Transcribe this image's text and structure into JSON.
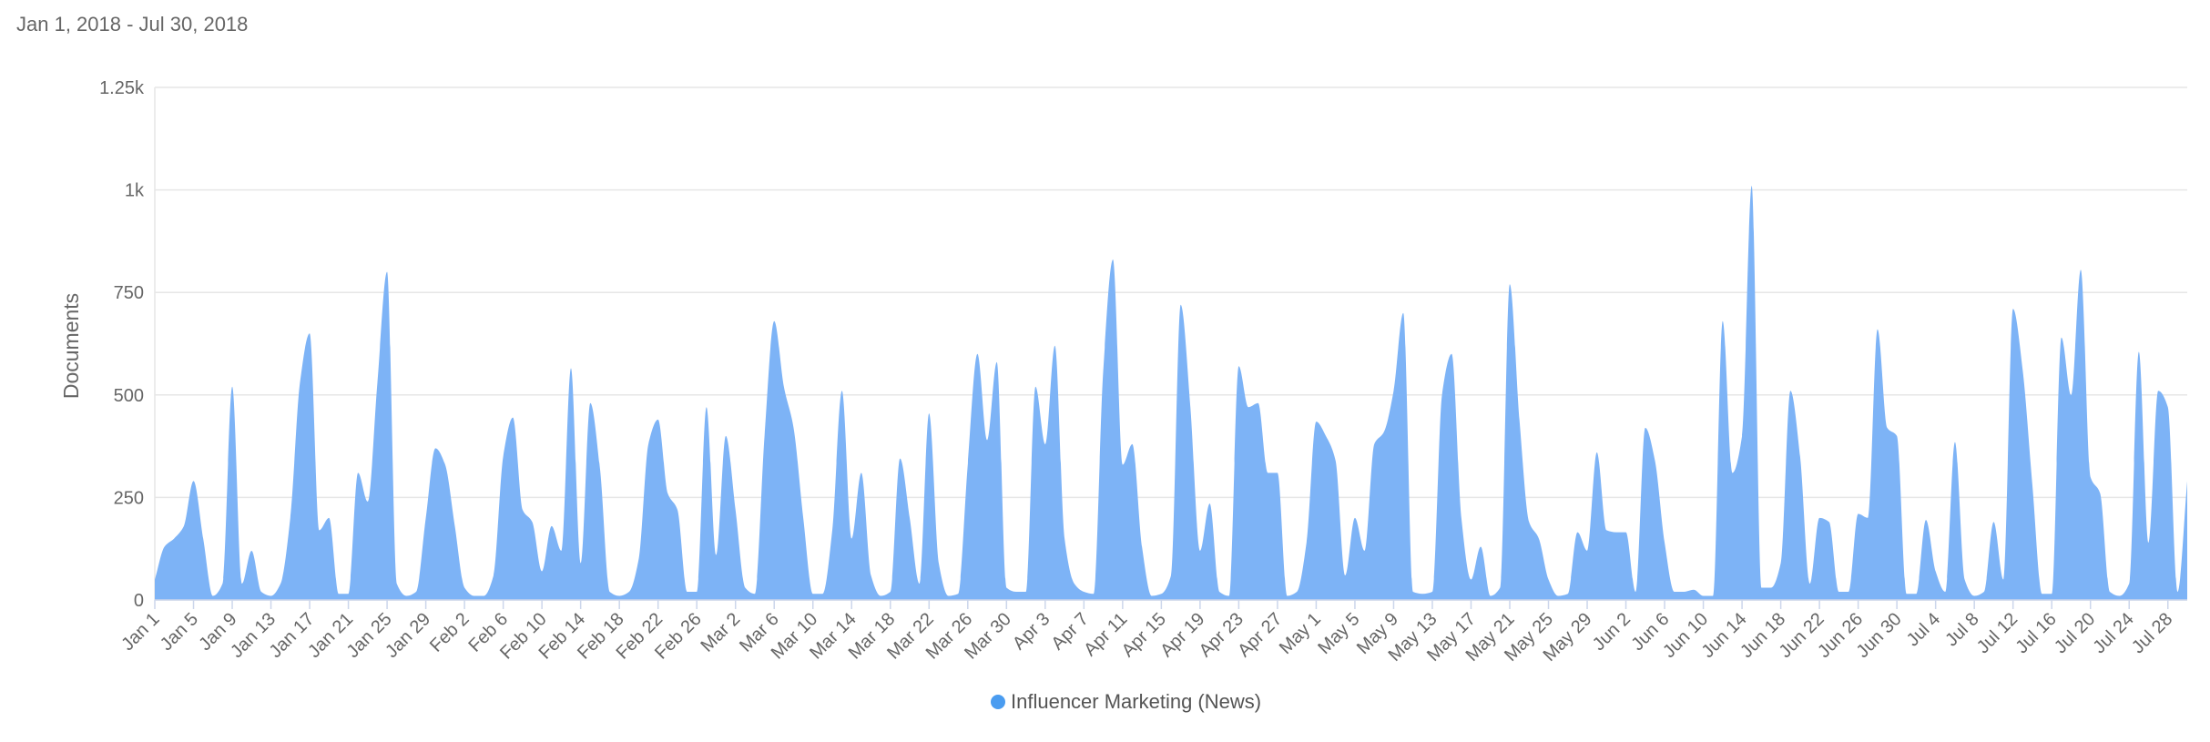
{
  "chart_data": {
    "type": "area",
    "subtitle": "Jan 1, 2018 - Jul 30, 2018",
    "y_label": "Documents",
    "ylim": [
      0,
      1250
    ],
    "yticks": [
      0,
      250,
      500,
      750,
      {
        "value": 1000,
        "label": "1k"
      },
      {
        "value": 1250,
        "label": "1.25k"
      }
    ],
    "grid": true,
    "legend": "bottom",
    "categories": [
      "Jan 1",
      null,
      null,
      null,
      "Jan 5",
      null,
      null,
      null,
      "Jan 9",
      null,
      null,
      null,
      "Jan 13",
      null,
      null,
      null,
      "Jan 17",
      null,
      null,
      null,
      "Jan 21",
      null,
      null,
      null,
      "Jan 25",
      null,
      null,
      null,
      "Jan 29",
      null,
      null,
      null,
      "Feb 2",
      null,
      null,
      null,
      "Feb 6",
      null,
      null,
      null,
      "Feb 10",
      null,
      null,
      null,
      "Feb 14",
      null,
      null,
      null,
      "Feb 18",
      null,
      null,
      null,
      "Feb 22",
      null,
      null,
      null,
      "Feb 26",
      null,
      null,
      null,
      "Mar 2",
      null,
      null,
      null,
      "Mar 6",
      null,
      null,
      null,
      "Mar 10",
      null,
      null,
      null,
      "Mar 14",
      null,
      null,
      null,
      "Mar 18",
      null,
      null,
      null,
      "Mar 22",
      null,
      null,
      null,
      "Mar 26",
      null,
      null,
      null,
      "Mar 30",
      null,
      null,
      null,
      "Apr 3",
      null,
      null,
      null,
      "Apr 7",
      null,
      null,
      null,
      "Apr 11",
      null,
      null,
      null,
      "Apr 15",
      null,
      null,
      null,
      "Apr 19",
      null,
      null,
      null,
      "Apr 23",
      null,
      null,
      null,
      "Apr 27",
      null,
      null,
      null,
      "May 1",
      null,
      null,
      null,
      "May 5",
      null,
      null,
      null,
      "May 9",
      null,
      null,
      null,
      "May 13",
      null,
      null,
      null,
      "May 17",
      null,
      null,
      null,
      "May 21",
      null,
      null,
      null,
      "May 25",
      null,
      null,
      null,
      "May 29",
      null,
      null,
      null,
      "Jun 2",
      null,
      null,
      null,
      "Jun 6",
      null,
      null,
      null,
      "Jun 10",
      null,
      null,
      null,
      "Jun 14",
      null,
      null,
      null,
      "Jun 18",
      null,
      null,
      null,
      "Jun 22",
      null,
      null,
      null,
      "Jun 26",
      null,
      null,
      null,
      "Jun 30",
      null,
      null,
      null,
      "Jul 4",
      null,
      null,
      null,
      "Jul 8",
      null,
      null,
      null,
      "Jul 12",
      null,
      null,
      null,
      "Jul 16",
      null,
      null,
      null,
      "Jul 20",
      null,
      null,
      null,
      "Jul 24",
      null,
      null,
      null,
      "Jul 28",
      null,
      null
    ],
    "series": [
      {
        "name": "Influencer Marketing (News)",
        "color": "#7db3f6",
        "marker_color": "#4a9cf0",
        "values": [
          50,
          130,
          150,
          180,
          290,
          150,
          10,
          40,
          520,
          40,
          120,
          20,
          10,
          40,
          200,
          530,
          650,
          170,
          200,
          15,
          15,
          310,
          240,
          530,
          800,
          40,
          10,
          20,
          200,
          370,
          330,
          180,
          30,
          10,
          10,
          60,
          350,
          445,
          220,
          190,
          70,
          180,
          120,
          565,
          90,
          480,
          320,
          20,
          10,
          20,
          100,
          380,
          440,
          260,
          220,
          20,
          20,
          470,
          110,
          400,
          220,
          30,
          15,
          400,
          680,
          520,
          420,
          200,
          15,
          15,
          170,
          510,
          150,
          310,
          60,
          10,
          20,
          345,
          200,
          40,
          455,
          90,
          10,
          15,
          330,
          600,
          390,
          580,
          30,
          20,
          20,
          520,
          380,
          620,
          150,
          40,
          20,
          15,
          560,
          830,
          330,
          380,
          130,
          10,
          15,
          60,
          720,
          470,
          120,
          235,
          20,
          10,
          570,
          470,
          480,
          310,
          310,
          10,
          20,
          140,
          435,
          400,
          340,
          60,
          200,
          120,
          380,
          410,
          510,
          700,
          20,
          15,
          20,
          500,
          600,
          200,
          50,
          130,
          10,
          30,
          770,
          440,
          190,
          150,
          50,
          10,
          15,
          165,
          120,
          360,
          170,
          165,
          165,
          20,
          420,
          340,
          140,
          20,
          20,
          25,
          10,
          10,
          680,
          310,
          400,
          1010,
          30,
          30,
          90,
          510,
          350,
          40,
          200,
          190,
          20,
          20,
          210,
          200,
          660,
          420,
          400,
          15,
          15,
          195,
          70,
          20,
          385,
          50,
          10,
          20,
          190,
          50,
          710,
          560,
          280,
          15,
          15,
          640,
          500,
          805,
          300,
          260,
          20,
          10,
          40,
          605,
          140,
          510,
          470,
          20,
          290
        ]
      }
    ]
  }
}
